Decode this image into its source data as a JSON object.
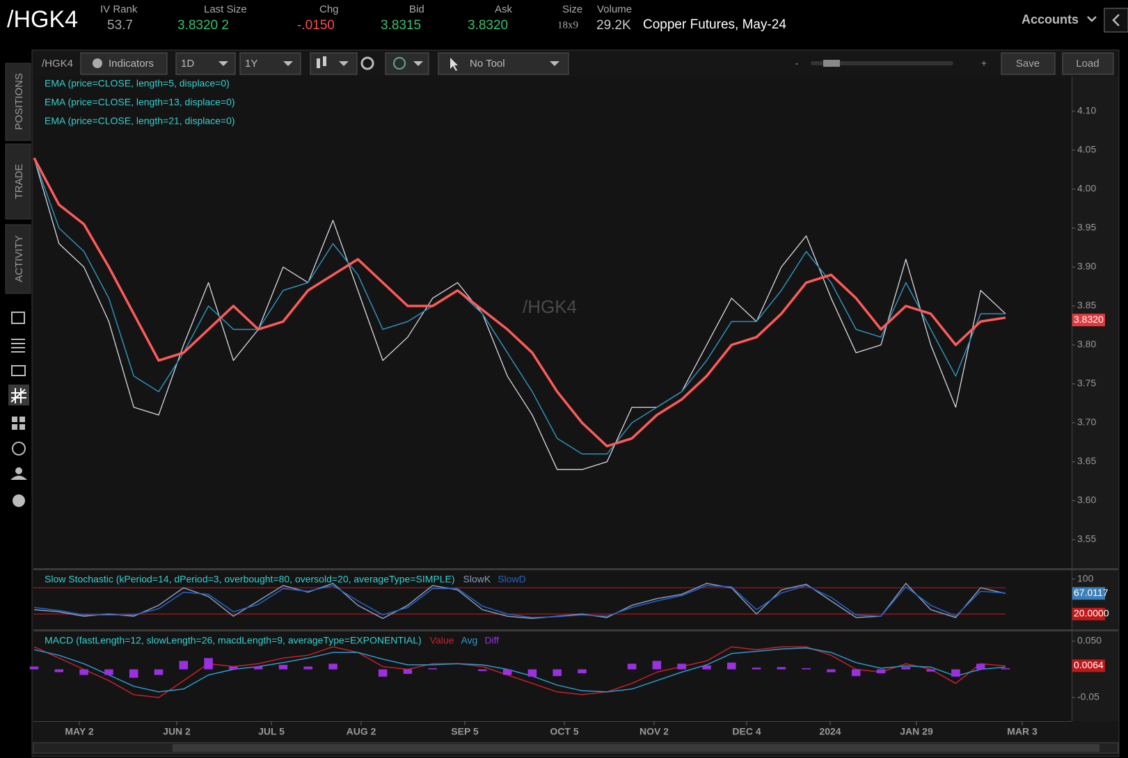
{
  "header": {
    "symbol": "/HGK4",
    "fields": [
      {
        "label": "IV Rank",
        "value": "53.7"
      },
      {
        "label": "Last Size",
        "value": "3.8320 2"
      },
      {
        "label": "Chg",
        "value": "-.0150"
      },
      {
        "label": "Bid",
        "value": "3.8315"
      },
      {
        "label": "Ask",
        "value": "3.8320"
      },
      {
        "label": "Size",
        "value": "18x9"
      },
      {
        "label": "Volume",
        "value": "29.2K"
      }
    ],
    "description": "Copper Futures, May-24",
    "accounts": "Accounts"
  },
  "toolbar": {
    "symbol": "/HGK4",
    "indicators": "Indicators",
    "aggregation": "1D",
    "period": "1Y",
    "tool": "No Tool",
    "zoom_out": "-",
    "zoom_in": "+",
    "save": "Save",
    "load": "Load"
  },
  "side_tabs": [
    "POSITIONS",
    "TRADE",
    "ACTIVITY"
  ],
  "time_axis": [
    "MAY 2",
    "JUN 2",
    "JUL 5",
    "AUG 2",
    "SEP 5",
    "OCT 5",
    "NOV 2",
    "DEC 4",
    "2024",
    "JAN 29",
    "MAR 3"
  ],
  "chart_data": [
    {
      "type": "line",
      "watermark": "/HGK4",
      "ylim": [
        3.5134,
        4.1446
      ],
      "yticks": [
        3.55,
        {
          "value": 3.6,
          "label": "3.60"
        },
        3.65,
        {
          "value": 3.7,
          "label": "3.70"
        },
        3.75,
        {
          "value": 3.8,
          "label": "3.80"
        },
        3.85,
        {
          "value": 3.9,
          "label": "3.90"
        },
        3.95,
        {
          "value": 4.0,
          "label": "4.00"
        },
        4.05,
        {
          "value": 4.1,
          "label": "4.10"
        }
      ],
      "badges": [
        {
          "value": 3.832,
          "label": "3.8320",
          "color": "#e0393e"
        }
      ],
      "series": [
        {
          "name": "EMA (price=CLOSE, length=5, displace=0)",
          "color": "#d8dbe6",
          "width": 1.3,
          "values": [
            4.04,
            3.93,
            3.9,
            3.83,
            3.72,
            3.71,
            3.8,
            3.88,
            3.78,
            3.82,
            3.9,
            3.88,
            3.96,
            3.87,
            3.78,
            3.81,
            3.86,
            3.88,
            3.84,
            3.76,
            3.71,
            3.64,
            3.64,
            3.65,
            3.72,
            3.72,
            3.74,
            3.8,
            3.86,
            3.83,
            3.9,
            3.94,
            3.86,
            3.79,
            3.8,
            3.91,
            3.8,
            3.72,
            3.87,
            3.84
          ]
        },
        {
          "name": "EMA (price=CLOSE, length=13, displace=0)",
          "color": "#2f90b8",
          "width": 1.5,
          "values": [
            4.04,
            3.95,
            3.92,
            3.86,
            3.76,
            3.74,
            3.79,
            3.85,
            3.82,
            3.82,
            3.87,
            3.88,
            3.93,
            3.89,
            3.82,
            3.83,
            3.85,
            3.87,
            3.84,
            3.79,
            3.74,
            3.68,
            3.66,
            3.66,
            3.7,
            3.72,
            3.74,
            3.78,
            3.83,
            3.83,
            3.87,
            3.92,
            3.88,
            3.82,
            3.81,
            3.88,
            3.82,
            3.76,
            3.84,
            3.84
          ]
        },
        {
          "name": "EMA (price=CLOSE, length=21, displace=0)",
          "color": "#ff5a5a",
          "width": 3.5,
          "values": [
            4.04,
            3.98,
            3.955,
            3.9,
            3.84,
            3.78,
            3.79,
            3.82,
            3.85,
            3.82,
            3.83,
            3.87,
            3.89,
            3.91,
            3.88,
            3.85,
            3.85,
            3.87,
            3.845,
            3.82,
            3.79,
            3.74,
            3.7,
            3.67,
            3.68,
            3.71,
            3.73,
            3.76,
            3.8,
            3.81,
            3.84,
            3.88,
            3.89,
            3.86,
            3.82,
            3.85,
            3.84,
            3.8,
            3.83,
            3.835
          ]
        }
      ]
    },
    {
      "type": "line",
      "title": "Slow Stochastic (kPeriod=14, dPeriod=3, overbought=80, oversold=20, averageType=SIMPLE)",
      "ylim": [
        -15,
        120
      ],
      "yticks": [
        100
      ],
      "ref_lines": [
        80,
        20
      ],
      "badges": [
        {
          "value": 67.0117,
          "label": "67.0117",
          "color": "#3d7fb8"
        },
        {
          "value": 20,
          "label": "20.0000",
          "color": "#c01818"
        }
      ],
      "series": [
        {
          "name": "SlowK",
          "color": "#8c9ab8",
          "values": [
            30,
            25,
            15,
            20,
            15,
            40,
            80,
            60,
            15,
            50,
            85,
            70,
            90,
            40,
            10,
            40,
            85,
            75,
            30,
            15,
            10,
            15,
            20,
            12,
            40,
            55,
            65,
            90,
            80,
            20,
            75,
            88,
            50,
            12,
            15,
            90,
            30,
            12,
            80,
            67
          ]
        },
        {
          "name": "SlowD",
          "color": "#2266cc",
          "values": [
            35,
            28,
            18,
            18,
            18,
            32,
            70,
            65,
            25,
            42,
            78,
            72,
            85,
            50,
            18,
            35,
            78,
            78,
            38,
            20,
            12,
            14,
            18,
            15,
            35,
            50,
            62,
            85,
            82,
            30,
            68,
            85,
            58,
            18,
            15,
            82,
            40,
            15,
            72,
            68
          ]
        }
      ]
    },
    {
      "type": "line",
      "title": "MACD (fastLength=12, slowLength=26, macdLength=9, averageType=EXPONENTIAL)",
      "ylim": [
        -0.092,
        0.0673
      ],
      "yticks": [
        {
          "value": 0.05,
          "label": "0.050"
        },
        -0.05
      ],
      "badges": [
        {
          "value": 0.0064,
          "label": "0.0064",
          "color": "#c01818"
        }
      ],
      "series": [
        {
          "name": "Value",
          "color": "#c8202c",
          "values": [
            0.04,
            0.02,
            0.0,
            -0.02,
            -0.045,
            -0.05,
            -0.02,
            0.01,
            0.005,
            0.01,
            0.02,
            0.025,
            0.04,
            0.03,
            0.005,
            0.0,
            0.01,
            0.01,
            0.005,
            -0.01,
            -0.025,
            -0.04,
            -0.045,
            -0.04,
            -0.025,
            -0.005,
            0.005,
            0.015,
            0.04,
            0.035,
            0.04,
            0.04,
            0.025,
            0.0,
            -0.005,
            0.01,
            0.0,
            -0.025,
            0.01,
            0.006
          ]
        },
        {
          "name": "Avg",
          "color": "#2a9bd0",
          "values": [
            0.035,
            0.025,
            0.01,
            -0.01,
            -0.03,
            -0.04,
            -0.035,
            -0.01,
            0.0,
            0.005,
            0.012,
            0.02,
            0.03,
            0.03,
            0.018,
            0.008,
            0.008,
            0.01,
            0.008,
            0.0,
            -0.012,
            -0.028,
            -0.038,
            -0.04,
            -0.035,
            -0.02,
            -0.005,
            0.008,
            0.028,
            0.032,
            0.036,
            0.038,
            0.03,
            0.012,
            0.002,
            0.006,
            0.004,
            -0.012,
            0.0,
            0.004
          ]
        },
        {
          "name": "Diff",
          "color": "#9a30e0",
          "style": "histogram",
          "values": [
            0.005,
            -0.005,
            -0.01,
            -0.01,
            -0.015,
            -0.01,
            0.015,
            0.02,
            0.005,
            0.005,
            0.008,
            0.005,
            0.01,
            0.0,
            -0.013,
            -0.008,
            0.002,
            0.0,
            -0.003,
            -0.01,
            -0.013,
            -0.012,
            -0.007,
            0.0,
            0.01,
            0.015,
            0.01,
            0.007,
            0.012,
            0.003,
            0.004,
            0.002,
            -0.005,
            -0.012,
            -0.007,
            0.004,
            -0.004,
            -0.013,
            0.01,
            0.002
          ]
        }
      ]
    }
  ]
}
